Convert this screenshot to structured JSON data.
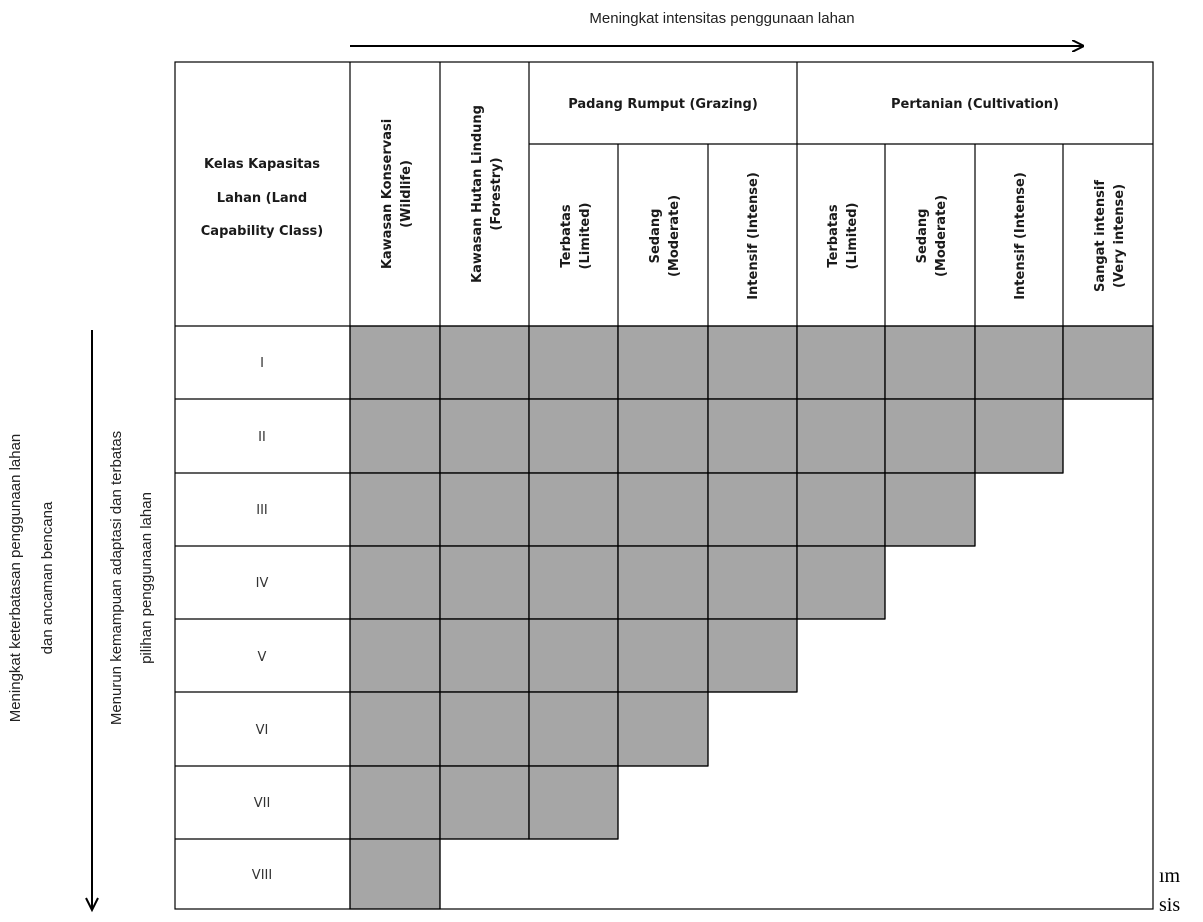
{
  "top_arrow_label": "Meningkat intensitas penggunaan lahan",
  "left_arrow_label_line1": "Meningkat keterbatasan penggunaan lahan",
  "left_arrow_label_line2": "dan ancaman bencana",
  "inner_arrow_label_line1": "Menurun kemampuan adaptasi dan terbatas",
  "inner_arrow_label_line2": "pilihan penggunaan lahan",
  "corner_header": [
    "Kelas Kapasitas",
    "Lahan (Land",
    "Capability Class)"
  ],
  "group_headers": {
    "grazing": "Padang Rumput (Grazing)",
    "cultivation": "Pertanian (Cultivation)"
  },
  "columns": [
    {
      "line1": "Kawasan Konservasi",
      "line2": "(Wildlife)"
    },
    {
      "line1": "Kawasan Hutan Lindung",
      "line2": "(Forestry)"
    },
    {
      "line1": "Terbatas",
      "line2": "(Limited)"
    },
    {
      "line1": "Sedang",
      "line2": "(Moderate)"
    },
    {
      "line1": "Intensif (Intense)",
      "line2": ""
    },
    {
      "line1": "Terbatas",
      "line2": "(Limited)"
    },
    {
      "line1": "Sedang",
      "line2": "(Moderate)"
    },
    {
      "line1": "Intensif (Intense)",
      "line2": ""
    },
    {
      "line1": "Sangat intensif",
      "line2": "(Very intense)"
    }
  ],
  "classes": [
    "I",
    "II",
    "III",
    "IV",
    "V",
    "VI",
    "VII",
    "VIII"
  ],
  "filled_columns_per_class": [
    9,
    8,
    7,
    6,
    5,
    4,
    3,
    1
  ],
  "fill_color": "#a6a6a6",
  "edge_text_fragments": [
    "ım",
    "sis"
  ]
}
